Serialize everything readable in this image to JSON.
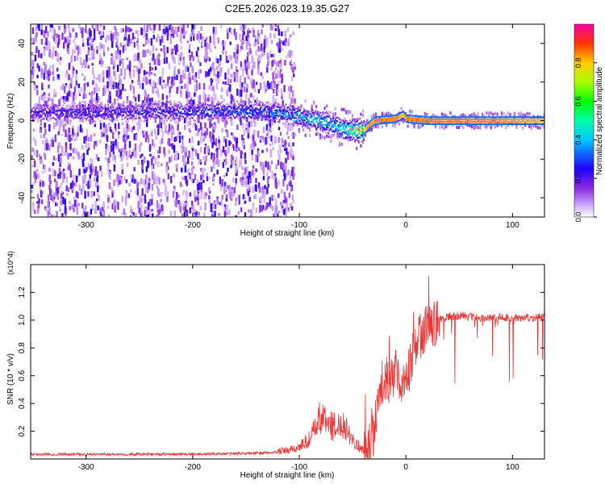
{
  "chart_data": [
    {
      "type": "heatmap",
      "title": "C2E5.2026.023.19.35.G27",
      "xlabel": "Height of straight line (km)",
      "ylabel": "Frequency (Hz)",
      "xlim": [
        -352,
        130
      ],
      "ylim": [
        -50,
        50
      ],
      "xticks": [
        "-300",
        "-200",
        "-100",
        "0",
        "100"
      ],
      "yticks": [
        "-40",
        "-20",
        "0",
        "20",
        "40"
      ],
      "colorbar": {
        "label": "Normalized spectral amplitude",
        "range": [
          0,
          1
        ],
        "ticks": [
          "0.0",
          "0.2",
          "0.4",
          "0.6",
          "0.8"
        ]
      },
      "ridge": [
        {
          "x": -352,
          "f": 4,
          "amp": 0.25
        },
        {
          "x": -200,
          "f": 5,
          "amp": 0.3
        },
        {
          "x": -150,
          "f": 5,
          "amp": 0.35
        },
        {
          "x": -120,
          "f": 4,
          "amp": 0.4
        },
        {
          "x": -100,
          "f": 2,
          "amp": 0.45
        },
        {
          "x": -80,
          "f": 0,
          "amp": 0.5
        },
        {
          "x": -60,
          "f": -4,
          "amp": 0.55
        },
        {
          "x": -50,
          "f": -5,
          "amp": 0.7
        },
        {
          "x": -40,
          "f": -5,
          "amp": 0.9
        },
        {
          "x": -30,
          "f": 0,
          "amp": 0.95
        },
        {
          "x": -10,
          "f": 1,
          "amp": 0.95
        },
        {
          "x": -3,
          "f": 3,
          "amp": 0.85
        },
        {
          "x": 0,
          "f": 1,
          "amp": 0.95
        },
        {
          "x": 20,
          "f": 0,
          "amp": 0.95
        },
        {
          "x": 80,
          "f": 0,
          "amp": 0.95
        },
        {
          "x": 130,
          "f": 0,
          "amp": 0.9
        }
      ]
    },
    {
      "type": "line",
      "title": "",
      "xlabel": "Height of straight line (km)",
      "ylabel": "SNR (10 * v/v)",
      "scale_label": "(x10^4)",
      "xlim": [
        -352,
        130
      ],
      "ylim": [
        0,
        1.4
      ],
      "xticks": [
        "-300",
        "-200",
        "-100",
        "0",
        "100"
      ],
      "yticks": [
        "0.2",
        "0.4",
        "0.6",
        "0.8",
        "1.0",
        "1.2"
      ],
      "color": "#ee3333",
      "series": [
        {
          "name": "SNR",
          "x": [
            -352,
            -300,
            -250,
            -200,
            -160,
            -130,
            -110,
            -100,
            -90,
            -85,
            -80,
            -75,
            -70,
            -65,
            -60,
            -55,
            -50,
            -45,
            -40,
            -35,
            -30,
            -25,
            -22,
            -20,
            -17,
            -15,
            -12,
            -10,
            -8,
            -5,
            -2,
            0,
            3,
            5,
            8,
            10,
            12,
            15,
            20,
            25,
            30,
            35,
            40,
            50,
            60,
            70,
            80,
            90,
            100,
            110,
            120,
            130
          ],
          "values": [
            0.03,
            0.03,
            0.03,
            0.03,
            0.035,
            0.04,
            0.05,
            0.07,
            0.12,
            0.18,
            0.25,
            0.22,
            0.2,
            0.18,
            0.22,
            0.18,
            0.12,
            0.08,
            0.05,
            0.08,
            0.2,
            0.42,
            0.55,
            0.6,
            0.58,
            0.55,
            0.6,
            0.62,
            0.58,
            0.55,
            0.6,
            0.62,
            0.65,
            0.72,
            0.8,
            0.85,
            0.88,
            0.9,
            0.95,
            0.98,
            1.0,
            1.02,
            1.03,
            1.04,
            1.03,
            1.02,
            1.02,
            1.03,
            1.02,
            1.02,
            1.02,
            1.03
          ]
        }
      ]
    }
  ]
}
